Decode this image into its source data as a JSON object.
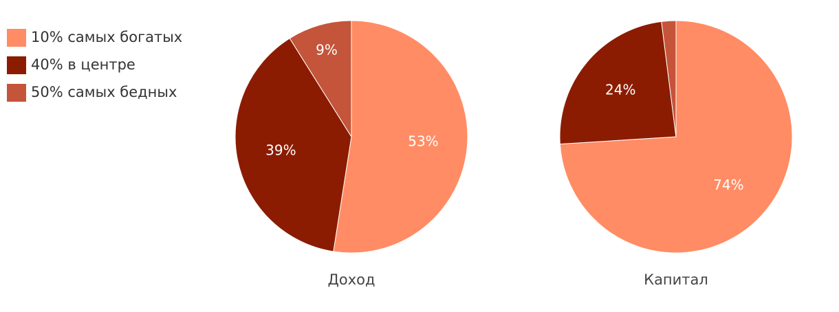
{
  "chart_data": {
    "type": "pie",
    "categories": [
      "10% самых богатых",
      "40% в центре",
      "50% самых бедных"
    ],
    "colors": [
      "#ff8c64",
      "#8b1c02",
      "#c4553a"
    ],
    "series": [
      {
        "name": "Доход",
        "values": [
          53,
          39,
          9
        ],
        "value_labels": [
          "53%",
          "39%",
          "9%"
        ]
      },
      {
        "name": "Капитал",
        "values": [
          74,
          24,
          2
        ],
        "value_labels": [
          "74%",
          "24%",
          null
        ]
      }
    ]
  }
}
